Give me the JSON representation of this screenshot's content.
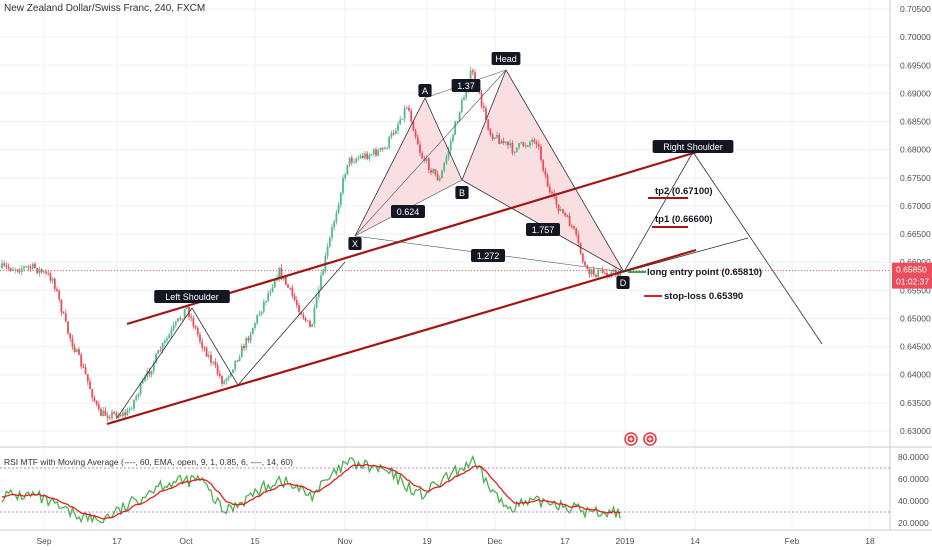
{
  "title": "New Zealand Dollar/Swiss Franc, 240, FXCM",
  "price_axis": {
    "ticks": [
      "0.70500",
      "0.70000",
      "0.69500",
      "0.69000",
      "0.68500",
      "0.68000",
      "0.67500",
      "0.67000",
      "0.66500",
      "0.66000",
      "0.65500",
      "0.65000",
      "0.64500",
      "0.64000",
      "0.63500",
      "0.63000"
    ],
    "current_price": "0.65850",
    "countdown": "01:02:37"
  },
  "time_axis": {
    "labels": [
      "Sep",
      "17",
      "Oct",
      "15",
      "Nov",
      "19",
      "Dec",
      "17",
      "2019",
      "14",
      "Feb",
      "18"
    ]
  },
  "annotations": {
    "head": "Head",
    "left_shoulder": "Left Shoulder",
    "right_shoulder": "Right Shoulder",
    "a": "A",
    "b": "B",
    "x": "X",
    "d": "D",
    "ratio_137": "1.37",
    "ratio_0624": "0.624",
    "ratio_1757": "1.757",
    "ratio_1272": "1.272",
    "tp2": "tp2 (0.67100)",
    "tp1": "tp1 (0.66600)",
    "entry": "long entry point (0.65810)",
    "stop": "stop-loss 0.65390"
  },
  "rsi_panel": {
    "label": "RSI MTF with Moving Average (----, 60, EMA, open, 9, 1, 0.85, 6, ----, 14, 60)",
    "ticks": [
      "80.0000",
      "60.0000",
      "40.0000",
      "20.0000"
    ]
  },
  "colors": {
    "up": "#53b987",
    "down": "#eb4d5c",
    "channel": "#a41414",
    "pattern_fill": "#f8d9dc",
    "rsi": "#4caf50",
    "rsi_ma": "#e02020",
    "band": "#b05ad6"
  },
  "chart_data": {
    "type": "candlestick",
    "title": "New Zealand Dollar/Swiss Franc, 240, FXCM",
    "y_range": [
      0.6285,
      0.7065
    ],
    "x_labels": [
      "Sep",
      "17",
      "Oct",
      "15",
      "Nov",
      "19",
      "Dec",
      "17",
      "2019",
      "14",
      "Feb",
      "18"
    ],
    "price_path": [
      {
        "x": "Aug 30",
        "y": 0.659
      },
      {
        "x": "Sep 3",
        "y": 0.657
      },
      {
        "x": "Sep 6",
        "y": 0.648
      },
      {
        "x": "Sep 10",
        "y": 0.64
      },
      {
        "x": "Sep 13",
        "y": 0.633
      },
      {
        "x": "Sep 19",
        "y": 0.633
      },
      {
        "x": "Sep 26",
        "y": 0.644
      },
      {
        "x": "Oct 2",
        "y": 0.652
      },
      {
        "x": "Oct 5",
        "y": 0.646
      },
      {
        "x": "Oct 10",
        "y": 0.6385
      },
      {
        "x": "Oct 15",
        "y": 0.646
      },
      {
        "x": "Oct 22",
        "y": 0.6585
      },
      {
        "x": "Oct 29",
        "y": 0.648
      },
      {
        "x": "Nov 1",
        "y": 0.66
      },
      {
        "x": "Nov 6",
        "y": 0.678
      },
      {
        "x": "Nov 14",
        "y": 0.68
      },
      {
        "x": "Nov 19",
        "y": 0.688
      },
      {
        "x": "Nov 22",
        "y": 0.679
      },
      {
        "x": "Nov 26",
        "y": 0.6745
      },
      {
        "x": "Nov 30",
        "y": 0.686
      },
      {
        "x": "Dec 3",
        "y": 0.694
      },
      {
        "x": "Dec 7",
        "y": 0.683
      },
      {
        "x": "Dec 12",
        "y": 0.68
      },
      {
        "x": "Dec 17",
        "y": 0.682
      },
      {
        "x": "Dec 20",
        "y": 0.672
      },
      {
        "x": "Dec 25",
        "y": 0.666
      },
      {
        "x": "Dec 28",
        "y": 0.6581
      }
    ],
    "pattern_points": {
      "X": 0.665,
      "A": 0.689,
      "B": 0.675,
      "Head": 0.6945,
      "D": 0.6581,
      "Left Shoulder": 0.652,
      "Right Shoulder": 0.679
    },
    "levels": {
      "tp2": 0.671,
      "tp1": 0.666,
      "long_entry": 0.6581,
      "stop_loss": 0.6539,
      "last_price": 0.6585
    },
    "rsi": {
      "y_range": [
        15,
        85
      ],
      "overbought": 70,
      "oversold": 30,
      "path": [
        {
          "x": "Aug 30",
          "y": 45
        },
        {
          "x": "Sep 6",
          "y": 30
        },
        {
          "x": "Sep 13",
          "y": 22
        },
        {
          "x": "Sep 19",
          "y": 35
        },
        {
          "x": "Sep 26",
          "y": 55
        },
        {
          "x": "Oct 5",
          "y": 60
        },
        {
          "x": "Oct 10",
          "y": 30
        },
        {
          "x": "Oct 22",
          "y": 60
        },
        {
          "x": "Oct 29",
          "y": 45
        },
        {
          "x": "Nov 6",
          "y": 75
        },
        {
          "x": "Nov 14",
          "y": 68
        },
        {
          "x": "Nov 22",
          "y": 45
        },
        {
          "x": "Dec 3",
          "y": 76
        },
        {
          "x": "Dec 10",
          "y": 35
        },
        {
          "x": "Dec 20",
          "y": 40
        },
        {
          "x": "Dec 28",
          "y": 30
        }
      ]
    }
  }
}
